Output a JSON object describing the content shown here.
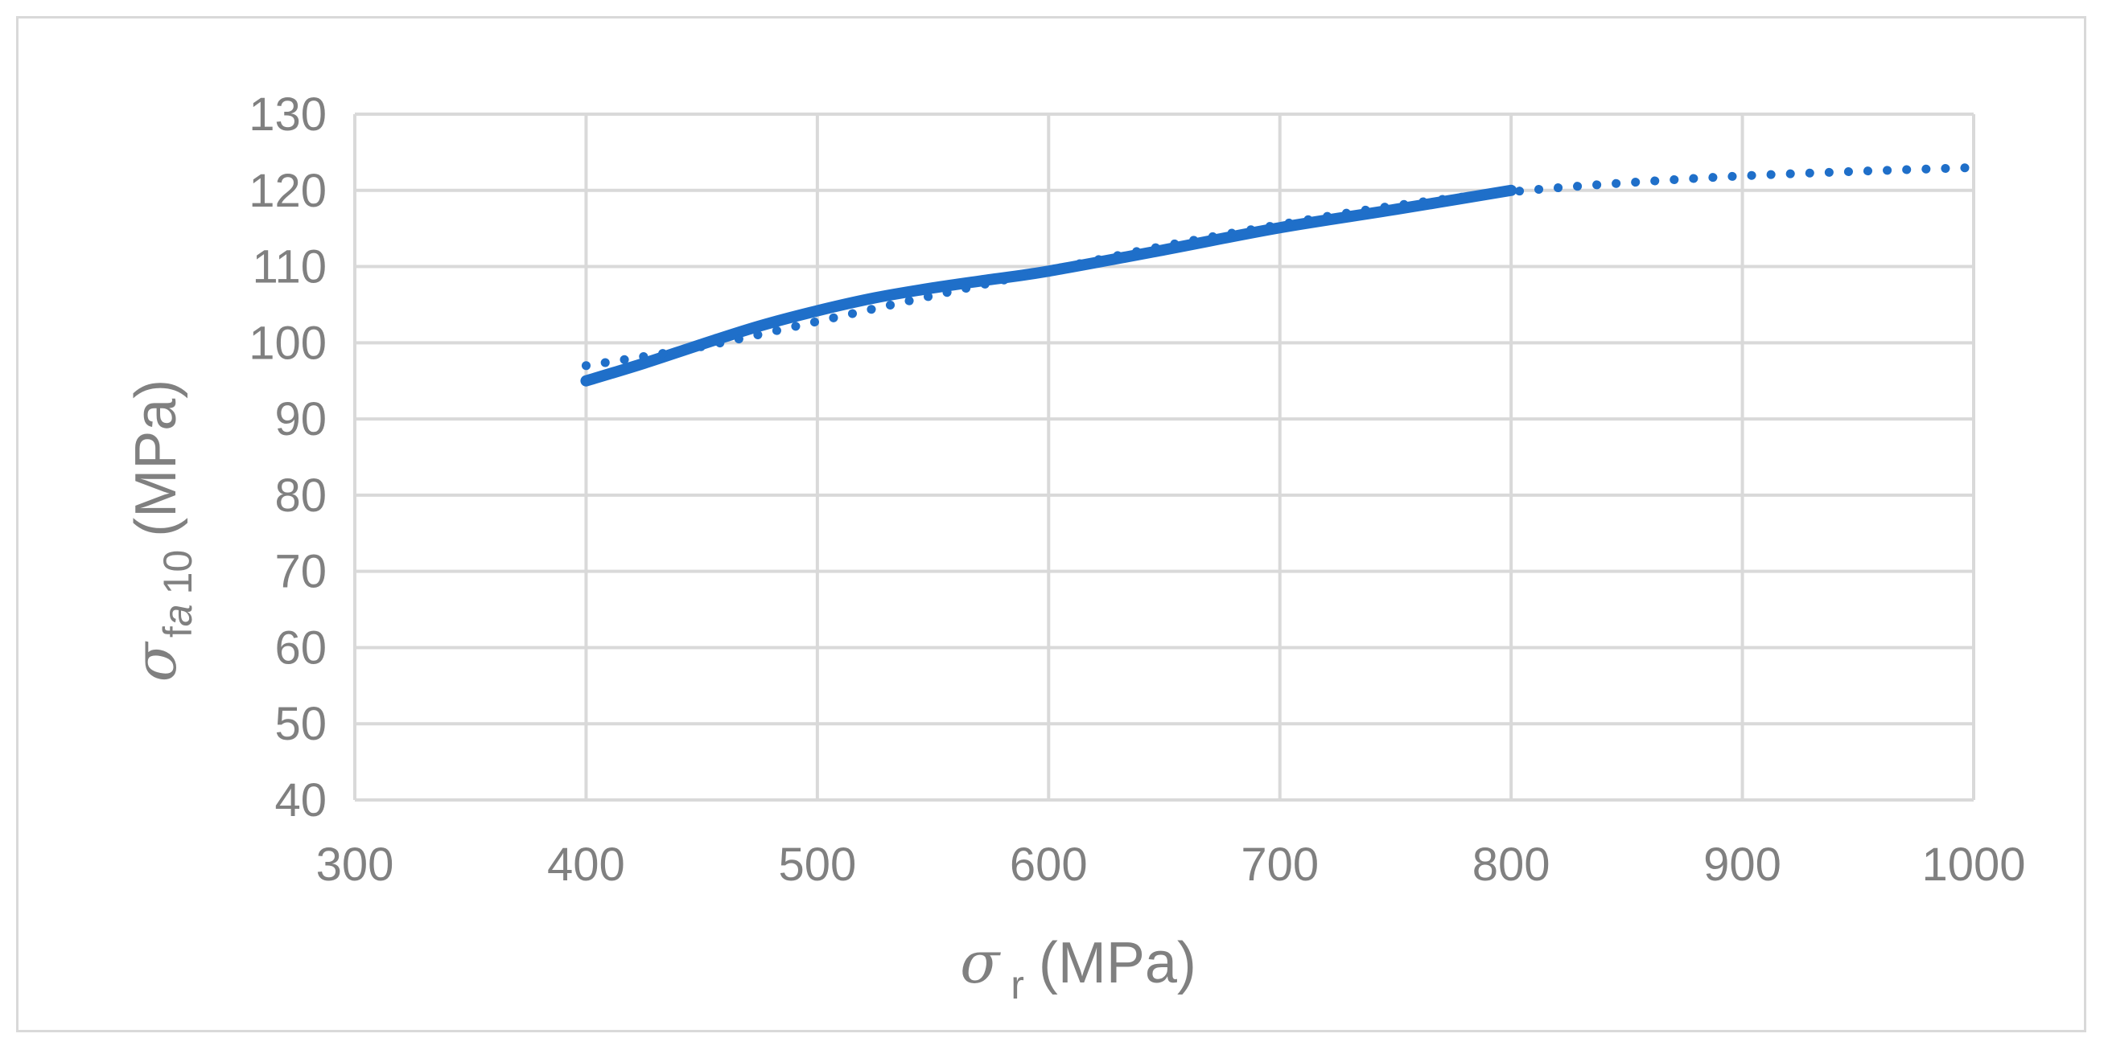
{
  "chart_data": {
    "type": "line",
    "title": "",
    "xlabel": {
      "symbol": "σ",
      "subscript": "r",
      "unit": "(MPa)"
    },
    "ylabel": {
      "symbol": "σ",
      "subscript_a": "f",
      "subscript_b": "a",
      "subscript_c": "10",
      "unit": "(MPa)"
    },
    "xlim": [
      300,
      1000
    ],
    "ylim": [
      40,
      130
    ],
    "x_ticks": [
      300,
      400,
      500,
      600,
      700,
      800,
      900,
      1000
    ],
    "y_ticks": [
      40,
      50,
      60,
      70,
      80,
      90,
      100,
      110,
      120,
      130
    ],
    "grid": true,
    "colors": {
      "series": "#1f6fc9",
      "grid": "#d9d9d9",
      "text": "#808080"
    },
    "series": [
      {
        "name": "solid",
        "style": "solid",
        "x": [
          400,
          425,
          450,
          475,
          500,
          525,
          550,
          575,
          600,
          650,
          700,
          750,
          800
        ],
        "y": [
          95,
          97.3,
          99.8,
          102.2,
          104.2,
          105.9,
          107.2,
          108.3,
          109.4,
          112.2,
          115.1,
          117.5,
          120
        ]
      },
      {
        "name": "dotted",
        "style": "dotted",
        "x": [
          400,
          450,
          500,
          550,
          600,
          650,
          700,
          750,
          800,
          850,
          900,
          950,
          1000
        ],
        "y": [
          97,
          99.5,
          102.8,
          106.2,
          109.5,
          112.7,
          115.5,
          118,
          119.8,
          121,
          121.9,
          122.5,
          123
        ]
      }
    ]
  }
}
